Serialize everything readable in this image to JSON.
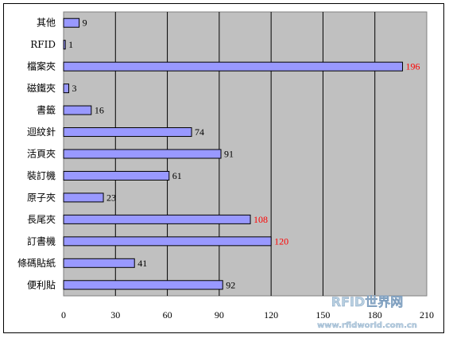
{
  "chart_data": {
    "type": "bar",
    "orientation": "horizontal",
    "title": "",
    "xlabel": "",
    "ylabel": "",
    "categories": [
      "其他",
      "RFID",
      "檔案夾",
      "磁鐵夾",
      "書籤",
      "迴紋針",
      "活頁夾",
      "裝訂機",
      "原子夾",
      "長尾夾",
      "訂書機",
      "條碼貼紙",
      "便利貼"
    ],
    "values": [
      9,
      1,
      196,
      3,
      16,
      74,
      91,
      61,
      23,
      108,
      120,
      41,
      92
    ],
    "highlight_values": [
      196,
      108,
      120
    ],
    "xlim": [
      0,
      210
    ],
    "xticks": [
      0,
      30,
      60,
      90,
      120,
      150,
      180,
      210
    ],
    "grid": "vertical",
    "legend": "none",
    "colors": {
      "bar_fill": "#9999ff",
      "bar_stroke": "#000000",
      "plot_bg": "#c0c0c0",
      "label": "#000000",
      "highlight_label": "#ff0000",
      "watermark": "#b8cfe0"
    }
  },
  "watermark": {
    "line1": "RFID世界网",
    "line2": "www.rfidworld.com.cn"
  }
}
